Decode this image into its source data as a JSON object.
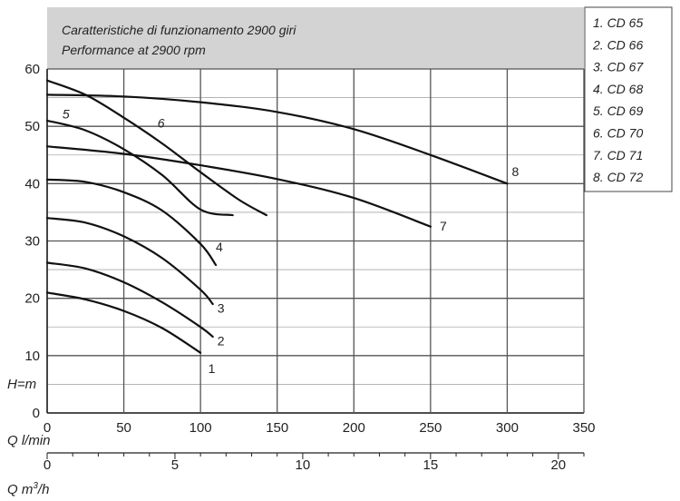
{
  "chart_data": {
    "type": "line",
    "title": "Caratteristiche di funzionamento 2900 giri",
    "subtitle": "Performance at 2900 rpm",
    "xlabel": "Q l/min",
    "xlabel2": "Q m³/h",
    "ylabel": "H=m",
    "xlim": [
      0,
      350
    ],
    "ylim": [
      0,
      60
    ],
    "x_ticks": [
      "0",
      "50",
      "100",
      "150",
      "200",
      "250",
      "300",
      "350"
    ],
    "x2_ticks": [
      "0",
      "5",
      "10",
      "15",
      "20"
    ],
    "y_ticks": [
      "0",
      "10",
      "20",
      "30",
      "40",
      "50",
      "60"
    ],
    "grid": true,
    "legend_position": "top-right",
    "series": [
      {
        "name": "1. CD 65",
        "label": "1",
        "color": "#111111",
        "points": [
          [
            0,
            21
          ],
          [
            25,
            19.8
          ],
          [
            50,
            17.8
          ],
          [
            75,
            14.8
          ],
          [
            100,
            10.5
          ]
        ]
      },
      {
        "name": "2. CD 66",
        "label": "2",
        "color": "#111111",
        "points": [
          [
            0,
            26.2
          ],
          [
            25,
            25.2
          ],
          [
            50,
            22.8
          ],
          [
            75,
            19.3
          ],
          [
            100,
            15
          ],
          [
            108,
            13.3
          ]
        ]
      },
      {
        "name": "3. CD 67",
        "label": "3",
        "color": "#111111",
        "points": [
          [
            0,
            34
          ],
          [
            25,
            33.2
          ],
          [
            50,
            30.8
          ],
          [
            75,
            27
          ],
          [
            100,
            21.5
          ],
          [
            108,
            19
          ]
        ]
      },
      {
        "name": "4. CD 68",
        "label": "4",
        "color": "#111111",
        "points": [
          [
            0,
            40.7
          ],
          [
            25,
            40.3
          ],
          [
            50,
            38.5
          ],
          [
            75,
            35.3
          ],
          [
            100,
            29.5
          ],
          [
            110,
            25.8
          ]
        ]
      },
      {
        "name": "5. CD 69",
        "label": "5",
        "color": "#111111",
        "points": [
          [
            0,
            51
          ],
          [
            25,
            49.3
          ],
          [
            50,
            46
          ],
          [
            75,
            41.5
          ],
          [
            100,
            35.5
          ],
          [
            121,
            34.5
          ]
        ]
      },
      {
        "name": "6. CD 70",
        "label": "6",
        "color": "#111111",
        "points": [
          [
            0,
            58
          ],
          [
            25,
            55.5
          ],
          [
            50,
            51.5
          ],
          [
            75,
            47
          ],
          [
            100,
            42
          ],
          [
            125,
            37.2
          ],
          [
            143,
            34.5
          ]
        ]
      },
      {
        "name": "7. CD 71",
        "label": "7",
        "color": "#111111",
        "points": [
          [
            0,
            46.5
          ],
          [
            50,
            45.2
          ],
          [
            100,
            43.2
          ],
          [
            150,
            40.8
          ],
          [
            200,
            37.5
          ],
          [
            250,
            32.5
          ]
        ]
      },
      {
        "name": "8. CD 72",
        "label": "8",
        "color": "#111111",
        "points": [
          [
            0,
            55.5
          ],
          [
            50,
            55.2
          ],
          [
            100,
            54.2
          ],
          [
            150,
            52.5
          ],
          [
            200,
            49.5
          ],
          [
            250,
            45
          ],
          [
            300,
            40
          ]
        ]
      }
    ]
  }
}
